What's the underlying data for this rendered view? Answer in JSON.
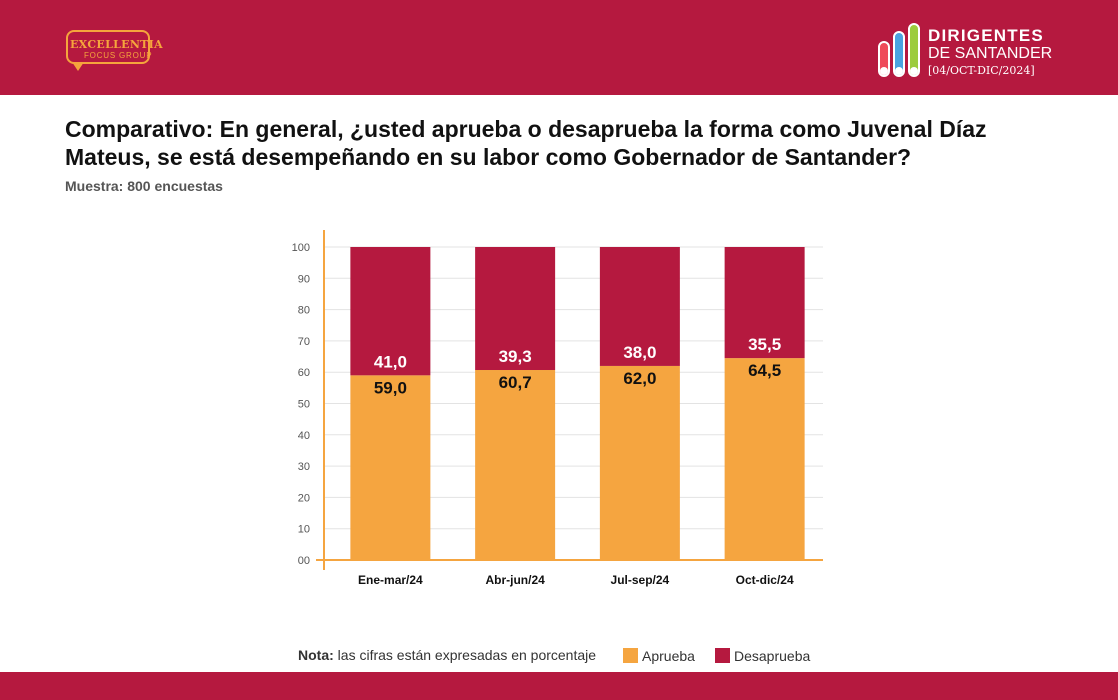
{
  "header": {
    "left_logo": {
      "brand": "EXCELLENTIA",
      "sub": "FOCUS GROUP"
    },
    "right_logo": {
      "line1": "DIRIGENTES",
      "line2": "DE SANTANDER",
      "line3": "[04/OCT-DIC/2024]",
      "pill_colors": [
        "#ef4a5a",
        "#4aa3e0",
        "#9ccc3c"
      ]
    }
  },
  "title": "Comparativo: En general, ¿usted aprueba o desaprueba la forma como Juvenal Díaz Mateus, se está desempeñando en su labor como Gobernador de Santander?",
  "sample": "Muestra: 800 encuestas",
  "note": {
    "label": "Nota:",
    "text": "las cifras están expresadas en porcentaje"
  },
  "colors": {
    "brand": "#b5193f",
    "approve": "#f5a540",
    "disapprove": "#b5193f",
    "axis": "#f5a540"
  },
  "chart_data": {
    "type": "bar",
    "stacked": true,
    "categories": [
      "Ene-mar/24",
      "Abr-jun/24",
      "Jul-sep/24",
      "Oct-dic/24"
    ],
    "series": [
      {
        "name": "Aprueba",
        "color": "#f5a540",
        "values": [
          59.0,
          60.7,
          62.0,
          64.5
        ],
        "labels": [
          "59,0",
          "60,7",
          "62,0",
          "64,5"
        ]
      },
      {
        "name": "Desaprueba",
        "color": "#b5193f",
        "values": [
          41.0,
          39.3,
          38.0,
          35.5
        ],
        "labels": [
          "41,0",
          "39,3",
          "38,0",
          "35,5"
        ]
      }
    ],
    "ylim": [
      0,
      100
    ],
    "yticks": [
      "00",
      "10",
      "20",
      "30",
      "40",
      "50",
      "60",
      "70",
      "80",
      "90",
      "100"
    ],
    "grid": true,
    "legend": "bottom"
  }
}
